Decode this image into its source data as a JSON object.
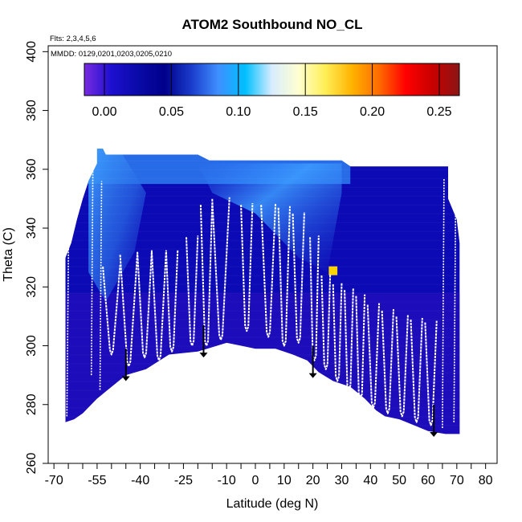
{
  "chart_data": {
    "type": "heatmap",
    "title": "ATOM2 Southbound NO_CL",
    "annotations": [
      "Flts: 2,3,4,5,6",
      "MMDD: 0129,0201,0203,0205,0210"
    ],
    "xlabel": "Latitude (deg N)",
    "ylabel": "Theta (C)",
    "xlim": [
      -72,
      84
    ],
    "ylim": [
      260,
      402
    ],
    "x_ticks": [
      -70,
      -65,
      -60,
      -55,
      -50,
      -45,
      -40,
      -35,
      -30,
      -25,
      -20,
      -15,
      -10,
      -5,
      0,
      5,
      10,
      15,
      20,
      25,
      30,
      35,
      40,
      45,
      50,
      55,
      60,
      65,
      70,
      75,
      80
    ],
    "x_tick_labels": [
      "-70",
      "",
      "",
      "-55",
      "",
      "",
      "-40",
      "",
      "",
      "-25",
      "",
      "",
      "-10",
      "",
      "0",
      "",
      "10",
      "",
      "20",
      "",
      "30",
      "",
      "40",
      "",
      "50",
      "",
      "60",
      "",
      "70",
      "",
      "80"
    ],
    "y_ticks": [
      260,
      280,
      300,
      320,
      340,
      360,
      380,
      400
    ],
    "y_tick_labels": [
      "260",
      "280",
      "300",
      "320",
      "340",
      "360",
      "380",
      "400"
    ],
    "colorbar": {
      "range": [
        -0.015,
        0.265
      ],
      "ticks": [
        0.0,
        0.05,
        0.1,
        0.15,
        0.2,
        0.25
      ],
      "tick_labels": [
        "0.00",
        "0.05",
        "0.10",
        "0.15",
        "0.20",
        "0.25"
      ],
      "colors": [
        "#7a2be0",
        "#1d0fd0",
        "#0a0aa8",
        "#00008b",
        "#1a3ccc",
        "#3f8fff",
        "#00bfff",
        "#d8ecff",
        "#ffffd0",
        "#ffee55",
        "#ffb300",
        "#ff6a00",
        "#ff0000",
        "#c80000",
        "#8b1515"
      ]
    },
    "domain_boundary": {
      "top": [
        [
          -66,
          330
        ],
        [
          -64,
          335
        ],
        [
          -62,
          343
        ],
        [
          -60,
          350
        ],
        [
          -58,
          356
        ],
        [
          -55,
          362
        ],
        [
          -55,
          367
        ],
        [
          -53,
          367
        ],
        [
          -52,
          365
        ],
        [
          -48,
          365
        ],
        [
          -45,
          365
        ],
        [
          -40,
          365
        ],
        [
          -35,
          365
        ],
        [
          -30,
          365
        ],
        [
          -25,
          365
        ],
        [
          -20,
          365
        ],
        [
          -16,
          363
        ],
        [
          -10,
          363
        ],
        [
          0,
          363
        ],
        [
          10,
          363
        ],
        [
          20,
          363
        ],
        [
          30,
          363
        ],
        [
          33,
          361
        ],
        [
          40,
          361
        ],
        [
          45,
          361
        ],
        [
          50,
          361
        ],
        [
          55,
          361
        ],
        [
          60,
          361
        ],
        [
          65,
          361
        ],
        [
          67,
          361
        ],
        [
          67,
          350
        ],
        [
          70,
          343
        ],
        [
          71,
          335
        ],
        [
          71,
          322
        ]
      ],
      "bottom": [
        [
          71,
          270
        ],
        [
          66,
          270
        ],
        [
          60,
          271
        ],
        [
          55,
          273
        ],
        [
          50,
          275
        ],
        [
          45,
          276
        ],
        [
          42,
          278
        ],
        [
          38,
          282
        ],
        [
          33,
          286
        ],
        [
          27,
          288
        ],
        [
          22,
          291
        ],
        [
          18,
          295
        ],
        [
          13,
          297
        ],
        [
          7,
          299
        ],
        [
          0,
          299
        ],
        [
          -5,
          300
        ],
        [
          -10,
          301
        ],
        [
          -20,
          298
        ],
        [
          -30,
          297
        ],
        [
          -38,
          292
        ],
        [
          -45,
          290
        ],
        [
          -50,
          286
        ],
        [
          -55,
          282
        ],
        [
          -60,
          277
        ],
        [
          -63,
          275
        ],
        [
          -66,
          274
        ]
      ]
    },
    "arrows_x": [
      -45,
      -18,
      20,
      62
    ],
    "profiles": [
      {
        "x0": -53,
        "x1": -47,
        "top": 328,
        "bottom": 297
      },
      {
        "x0": -47,
        "x1": -41,
        "top": 332,
        "bottom": 293
      },
      {
        "x0": -41,
        "x1": -36,
        "top": 333,
        "bottom": 296
      },
      {
        "x0": -36,
        "x1": -31,
        "top": 333,
        "bottom": 295
      },
      {
        "x0": -31,
        "x1": -27,
        "top": 333,
        "bottom": 298
      },
      {
        "x0": -24,
        "x1": -20,
        "top": 338,
        "bottom": 300
      },
      {
        "x0": -19,
        "x1": -15,
        "top": 349,
        "bottom": 300
      },
      {
        "x0": -15,
        "x1": -9,
        "top": 351,
        "bottom": 302
      },
      {
        "x0": -5,
        "x1": -1,
        "top": 349,
        "bottom": 305
      },
      {
        "x0": 2,
        "x1": 7,
        "top": 349,
        "bottom": 303
      },
      {
        "x0": 8,
        "x1": 12,
        "top": 348,
        "bottom": 300
      },
      {
        "x0": 13,
        "x1": 17,
        "top": 346,
        "bottom": 301
      },
      {
        "x0": 19,
        "x1": 22,
        "top": 338,
        "bottom": 295
      },
      {
        "x0": 23,
        "x1": 26,
        "top": 325,
        "bottom": 292
      },
      {
        "x0": 27,
        "x1": 30,
        "top": 322,
        "bottom": 288
      },
      {
        "x0": 31,
        "x1": 34,
        "top": 320,
        "bottom": 285
      },
      {
        "x0": 35,
        "x1": 38,
        "top": 318,
        "bottom": 282
      },
      {
        "x0": 39,
        "x1": 43,
        "top": 315,
        "bottom": 279
      },
      {
        "x0": 44,
        "x1": 48,
        "top": 313,
        "bottom": 277
      },
      {
        "x0": 49,
        "x1": 53,
        "top": 311,
        "bottom": 276
      },
      {
        "x0": 54,
        "x1": 58,
        "top": 310,
        "bottom": 274
      },
      {
        "x0": 59,
        "x1": 63,
        "top": 309,
        "bottom": 273
      }
    ]
  }
}
